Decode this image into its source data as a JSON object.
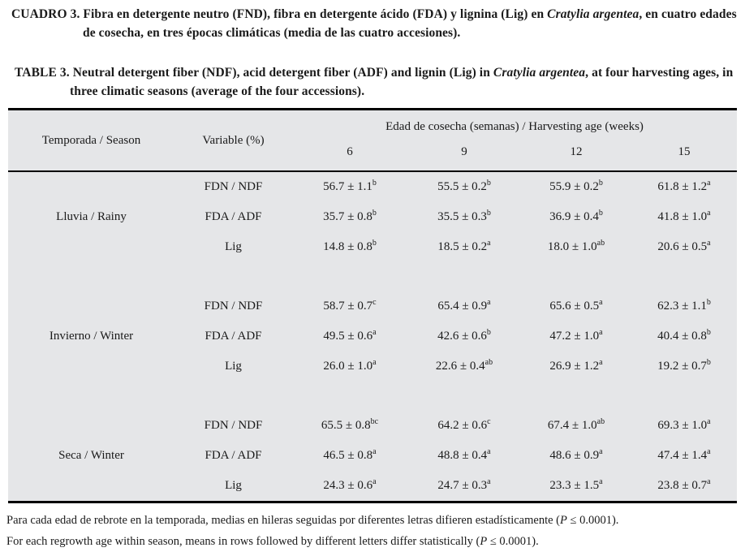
{
  "titles": {
    "es": {
      "label": "CUADRO 3.",
      "text_before_species": "Fibra en detergente neutro (FND), fibra en detergente ácido (FDA) y lignina (Lig) en ",
      "species_italic": "Cratylia argentea",
      "text_after_species": ", en cuatro edades de cosecha, en tres épocas climáticas (media de las cuatro accesiones)."
    },
    "en": {
      "label": "TABLE 3.",
      "text_before_species": "Neutral detergent fiber (NDF), acid detergent fiber (ADF) and lignin (Lig) in ",
      "species_italic": "Cratylia argentea",
      "text_after_species": ", at four harvesting ages, in three climatic seasons (average of the four accessions)."
    }
  },
  "table": {
    "background_color": "#e5e6e8",
    "header": {
      "season_col": "Temporada / Season",
      "variable_col": "Variable (%)",
      "age_span": "Edad de cosecha (semanas) / Harvesting age (weeks)",
      "ages": [
        "6",
        "9",
        "12",
        "15"
      ]
    },
    "groups": [
      {
        "season": "Lluvia / Rainy",
        "rows": [
          {
            "variable": "FDN / NDF",
            "values": [
              {
                "mean_sd": "56.7 ± 1.1",
                "letters": "b"
              },
              {
                "mean_sd": "55.5 ± 0.2",
                "letters": "b"
              },
              {
                "mean_sd": "55.9 ± 0.2",
                "letters": "b"
              },
              {
                "mean_sd": "61.8 ± 1.2",
                "letters": "a"
              }
            ]
          },
          {
            "variable": "FDA / ADF",
            "values": [
              {
                "mean_sd": "35.7 ± 0.8",
                "letters": "b"
              },
              {
                "mean_sd": "35.5 ± 0.3",
                "letters": "b"
              },
              {
                "mean_sd": "36.9 ± 0.4",
                "letters": "b"
              },
              {
                "mean_sd": "41.8 ± 1.0",
                "letters": "a"
              }
            ]
          },
          {
            "variable": "Lig",
            "values": [
              {
                "mean_sd": "14.8 ± 0.8",
                "letters": "b"
              },
              {
                "mean_sd": "18.5 ± 0.2",
                "letters": "a"
              },
              {
                "mean_sd": "18.0 ± 1.0",
                "letters": "ab"
              },
              {
                "mean_sd": "20.6 ± 0.5",
                "letters": "a"
              }
            ]
          }
        ]
      },
      {
        "season": "Invierno / Winter",
        "rows": [
          {
            "variable": "FDN / NDF",
            "values": [
              {
                "mean_sd": "58.7 ± 0.7",
                "letters": "c"
              },
              {
                "mean_sd": "65.4 ± 0.9",
                "letters": "a"
              },
              {
                "mean_sd": "65.6 ± 0.5",
                "letters": "a"
              },
              {
                "mean_sd": "62.3 ± 1.1",
                "letters": "b"
              }
            ]
          },
          {
            "variable": "FDA / ADF",
            "values": [
              {
                "mean_sd": "49.5 ± 0.6",
                "letters": "a"
              },
              {
                "mean_sd": "42.6 ± 0.6",
                "letters": "b"
              },
              {
                "mean_sd": "47.2 ± 1.0",
                "letters": "a"
              },
              {
                "mean_sd": "40.4 ± 0.8",
                "letters": "b"
              }
            ]
          },
          {
            "variable": "Lig",
            "values": [
              {
                "mean_sd": "26.0 ± 1.0",
                "letters": "a"
              },
              {
                "mean_sd": "22.6 ± 0.4",
                "letters": "ab"
              },
              {
                "mean_sd": "26.9 ± 1.2",
                "letters": "a"
              },
              {
                "mean_sd": "19.2 ± 0.7",
                "letters": "b"
              }
            ]
          }
        ]
      },
      {
        "season": "Seca / Winter",
        "rows": [
          {
            "variable": "FDN / NDF",
            "values": [
              {
                "mean_sd": "65.5 ± 0.8",
                "letters": "bc"
              },
              {
                "mean_sd": "64.2 ± 0.6",
                "letters": "c"
              },
              {
                "mean_sd": "67.4 ± 1.0",
                "letters": "ab"
              },
              {
                "mean_sd": "69.3 ± 1.0",
                "letters": "a"
              }
            ]
          },
          {
            "variable": "FDA / ADF",
            "values": [
              {
                "mean_sd": "46.5 ± 0.8",
                "letters": "a"
              },
              {
                "mean_sd": "48.8 ± 0.4",
                "letters": "a"
              },
              {
                "mean_sd": "48.6 ± 0.9",
                "letters": "a"
              },
              {
                "mean_sd": "47.4 ± 1.4",
                "letters": "a"
              }
            ]
          },
          {
            "variable": "Lig",
            "values": [
              {
                "mean_sd": "24.3 ± 0.6",
                "letters": "a"
              },
              {
                "mean_sd": "24.7 ± 0.3",
                "letters": "a"
              },
              {
                "mean_sd": "23.3 ± 1.5",
                "letters": "a"
              },
              {
                "mean_sd": "23.8 ± 0.7",
                "letters": "a"
              }
            ]
          }
        ]
      }
    ]
  },
  "footnotes": {
    "es": {
      "text_before_p": "Para cada edad de rebrote en la temporada, medias en hileras seguidas por diferentes letras difieren estadísticamente (",
      "p_italic": "P",
      "text_after_p": " ≤ 0.0001)."
    },
    "en": {
      "text_before_p": "For each regrowth age within season, means in rows followed by different letters differ statistically (",
      "p_italic": "P",
      "text_after_p": " ≤ 0.0001)."
    }
  }
}
